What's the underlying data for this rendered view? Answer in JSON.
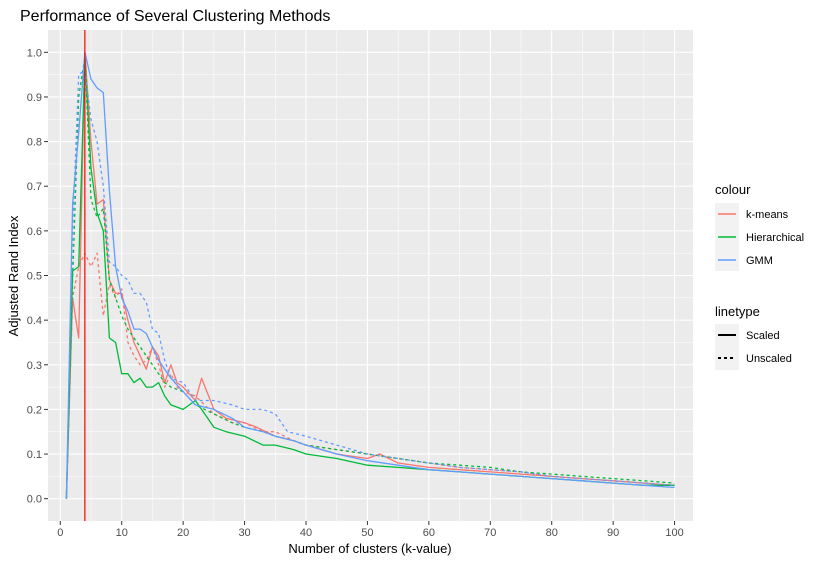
{
  "chart_data": {
    "type": "line",
    "title": "Performance of Several Clustering Methods",
    "xlabel": "Number of clusters (k-value)",
    "ylabel": "Adjusted Rand Index",
    "xlim": [
      -2,
      103
    ],
    "ylim": [
      -0.05,
      1.05
    ],
    "x_ticks": [
      0,
      10,
      20,
      30,
      40,
      50,
      60,
      70,
      80,
      90,
      100
    ],
    "y_ticks": [
      0.0,
      0.1,
      0.2,
      0.3,
      0.4,
      0.5,
      0.6,
      0.7,
      0.8,
      0.9,
      1.0
    ],
    "grid": true,
    "panel_color": "#EBEBEB",
    "vline": {
      "x": 4,
      "color": "#FF0000"
    },
    "legend": {
      "placement": "right",
      "colour_title": "colour",
      "linetype_title": "linetype",
      "colour_entries": [
        {
          "label": "k-means",
          "color": "#F8766D"
        },
        {
          "label": "Hierarchical",
          "color": "#00BA38"
        },
        {
          "label": "GMM",
          "color": "#619CFF"
        }
      ],
      "linetype_entries": [
        {
          "label": "Scaled",
          "dash": "solid"
        },
        {
          "label": "Unscaled",
          "dash": "dotted"
        }
      ]
    },
    "series": [
      {
        "method": "k-means",
        "linetype": "Scaled",
        "color": "#F8766D",
        "points": [
          [
            1,
            0.0
          ],
          [
            2,
            0.45
          ],
          [
            3,
            0.36
          ],
          [
            4,
            1.0
          ],
          [
            5,
            0.8
          ],
          [
            6,
            0.66
          ],
          [
            7,
            0.67
          ],
          [
            8,
            0.49
          ],
          [
            9,
            0.46
          ],
          [
            10,
            0.46
          ],
          [
            11,
            0.4
          ],
          [
            12,
            0.35
          ],
          [
            13,
            0.32
          ],
          [
            14,
            0.29
          ],
          [
            15,
            0.34
          ],
          [
            16,
            0.32
          ],
          [
            17,
            0.26
          ],
          [
            18,
            0.3
          ],
          [
            19,
            0.26
          ],
          [
            20,
            0.25
          ],
          [
            22,
            0.22
          ],
          [
            23,
            0.27
          ],
          [
            25,
            0.2
          ],
          [
            27,
            0.18
          ],
          [
            30,
            0.17
          ],
          [
            32,
            0.16
          ],
          [
            35,
            0.14
          ],
          [
            38,
            0.13
          ],
          [
            40,
            0.12
          ],
          [
            45,
            0.1
          ],
          [
            50,
            0.09
          ],
          [
            52,
            0.1
          ],
          [
            55,
            0.08
          ],
          [
            60,
            0.07
          ],
          [
            65,
            0.065
          ],
          [
            70,
            0.06
          ],
          [
            75,
            0.055
          ],
          [
            80,
            0.05
          ],
          [
            85,
            0.045
          ],
          [
            90,
            0.04
          ],
          [
            95,
            0.035
          ],
          [
            100,
            0.03
          ]
        ]
      },
      {
        "method": "k-means",
        "linetype": "Unscaled",
        "color": "#F8766D",
        "points": [
          [
            1,
            0.0
          ],
          [
            2,
            0.45
          ],
          [
            3,
            0.52
          ],
          [
            4,
            0.55
          ],
          [
            5,
            0.52
          ],
          [
            6,
            0.55
          ],
          [
            7,
            0.41
          ],
          [
            8,
            0.48
          ],
          [
            9,
            0.45
          ],
          [
            10,
            0.47
          ],
          [
            11,
            0.35
          ],
          [
            12,
            0.32
          ],
          [
            13,
            0.3
          ],
          [
            14,
            0.31
          ],
          [
            15,
            0.34
          ],
          [
            16,
            0.3
          ],
          [
            17,
            0.25
          ],
          [
            18,
            0.28
          ],
          [
            19,
            0.25
          ],
          [
            20,
            0.24
          ],
          [
            22,
            0.23
          ],
          [
            25,
            0.19
          ],
          [
            28,
            0.17
          ],
          [
            30,
            0.17
          ],
          [
            33,
            0.15
          ],
          [
            35,
            0.15
          ],
          [
            38,
            0.13
          ],
          [
            40,
            0.12
          ],
          [
            45,
            0.11
          ],
          [
            50,
            0.1
          ],
          [
            55,
            0.09
          ],
          [
            60,
            0.08
          ],
          [
            65,
            0.07
          ],
          [
            70,
            0.065
          ],
          [
            75,
            0.06
          ],
          [
            80,
            0.05
          ],
          [
            85,
            0.045
          ],
          [
            90,
            0.04
          ],
          [
            95,
            0.035
          ],
          [
            100,
            0.03
          ]
        ]
      },
      {
        "method": "Hierarchical",
        "linetype": "Scaled",
        "color": "#00BA38",
        "points": [
          [
            1,
            0.0
          ],
          [
            2,
            0.51
          ],
          [
            3,
            0.52
          ],
          [
            4,
            0.99
          ],
          [
            5,
            0.74
          ],
          [
            6,
            0.64
          ],
          [
            7,
            0.6
          ],
          [
            8,
            0.36
          ],
          [
            9,
            0.35
          ],
          [
            10,
            0.28
          ],
          [
            11,
            0.28
          ],
          [
            12,
            0.26
          ],
          [
            13,
            0.27
          ],
          [
            14,
            0.25
          ],
          [
            15,
            0.25
          ],
          [
            16,
            0.26
          ],
          [
            17,
            0.23
          ],
          [
            18,
            0.21
          ],
          [
            20,
            0.2
          ],
          [
            22,
            0.22
          ],
          [
            23,
            0.2
          ],
          [
            25,
            0.16
          ],
          [
            27,
            0.15
          ],
          [
            30,
            0.14
          ],
          [
            33,
            0.12
          ],
          [
            35,
            0.12
          ],
          [
            38,
            0.11
          ],
          [
            40,
            0.1
          ],
          [
            45,
            0.09
          ],
          [
            50,
            0.075
          ],
          [
            55,
            0.07
          ],
          [
            60,
            0.065
          ],
          [
            65,
            0.06
          ],
          [
            70,
            0.055
          ],
          [
            75,
            0.05
          ],
          [
            80,
            0.045
          ],
          [
            85,
            0.04
          ],
          [
            90,
            0.035
          ],
          [
            95,
            0.03
          ],
          [
            100,
            0.03
          ]
        ]
      },
      {
        "method": "Hierarchical",
        "linetype": "Unscaled",
        "color": "#00BA38",
        "points": [
          [
            1,
            0.0
          ],
          [
            2,
            0.49
          ],
          [
            3,
            0.9
          ],
          [
            4,
            0.99
          ],
          [
            5,
            0.67
          ],
          [
            6,
            0.63
          ],
          [
            7,
            0.65
          ],
          [
            8,
            0.49
          ],
          [
            9,
            0.45
          ],
          [
            10,
            0.41
          ],
          [
            11,
            0.38
          ],
          [
            12,
            0.36
          ],
          [
            13,
            0.34
          ],
          [
            14,
            0.32
          ],
          [
            15,
            0.3
          ],
          [
            16,
            0.28
          ],
          [
            17,
            0.26
          ],
          [
            18,
            0.25
          ],
          [
            20,
            0.24
          ],
          [
            22,
            0.21
          ],
          [
            25,
            0.19
          ],
          [
            28,
            0.17
          ],
          [
            30,
            0.16
          ],
          [
            33,
            0.15
          ],
          [
            35,
            0.14
          ],
          [
            38,
            0.13
          ],
          [
            40,
            0.12
          ],
          [
            45,
            0.11
          ],
          [
            50,
            0.1
          ],
          [
            55,
            0.09
          ],
          [
            60,
            0.08
          ],
          [
            65,
            0.075
          ],
          [
            70,
            0.07
          ],
          [
            75,
            0.06
          ],
          [
            80,
            0.055
          ],
          [
            85,
            0.05
          ],
          [
            90,
            0.045
          ],
          [
            95,
            0.04
          ],
          [
            100,
            0.035
          ]
        ]
      },
      {
        "method": "GMM",
        "linetype": "Scaled",
        "color": "#619CFF",
        "points": [
          [
            1,
            0.0
          ],
          [
            2,
            0.66
          ],
          [
            3,
            0.82
          ],
          [
            4,
            1.0
          ],
          [
            5,
            0.94
          ],
          [
            6,
            0.92
          ],
          [
            7,
            0.91
          ],
          [
            8,
            0.69
          ],
          [
            9,
            0.52
          ],
          [
            10,
            0.45
          ],
          [
            11,
            0.42
          ],
          [
            12,
            0.38
          ],
          [
            13,
            0.38
          ],
          [
            14,
            0.37
          ],
          [
            15,
            0.34
          ],
          [
            16,
            0.31
          ],
          [
            17,
            0.29
          ],
          [
            18,
            0.27
          ],
          [
            20,
            0.24
          ],
          [
            22,
            0.21
          ],
          [
            25,
            0.2
          ],
          [
            28,
            0.18
          ],
          [
            30,
            0.16
          ],
          [
            33,
            0.15
          ],
          [
            35,
            0.14
          ],
          [
            38,
            0.13
          ],
          [
            40,
            0.12
          ],
          [
            45,
            0.1
          ],
          [
            50,
            0.085
          ],
          [
            55,
            0.075
          ],
          [
            60,
            0.065
          ],
          [
            65,
            0.06
          ],
          [
            70,
            0.055
          ],
          [
            75,
            0.05
          ],
          [
            80,
            0.045
          ],
          [
            85,
            0.04
          ],
          [
            90,
            0.035
          ],
          [
            95,
            0.03
          ],
          [
            100,
            0.025
          ]
        ]
      },
      {
        "method": "GMM",
        "linetype": "Unscaled",
        "color": "#619CFF",
        "points": [
          [
            1,
            0.0
          ],
          [
            2,
            0.6
          ],
          [
            3,
            0.95
          ],
          [
            4,
            0.96
          ],
          [
            5,
            0.85
          ],
          [
            6,
            0.8
          ],
          [
            7,
            0.7
          ],
          [
            8,
            0.53
          ],
          [
            9,
            0.52
          ],
          [
            10,
            0.5
          ],
          [
            11,
            0.49
          ],
          [
            12,
            0.46
          ],
          [
            13,
            0.46
          ],
          [
            14,
            0.44
          ],
          [
            15,
            0.38
          ],
          [
            16,
            0.37
          ],
          [
            17,
            0.31
          ],
          [
            18,
            0.27
          ],
          [
            20,
            0.26
          ],
          [
            22,
            0.22
          ],
          [
            25,
            0.22
          ],
          [
            28,
            0.21
          ],
          [
            30,
            0.2
          ],
          [
            33,
            0.2
          ],
          [
            35,
            0.19
          ],
          [
            37,
            0.15
          ],
          [
            40,
            0.14
          ],
          [
            45,
            0.12
          ],
          [
            50,
            0.1
          ],
          [
            55,
            0.09
          ],
          [
            60,
            0.08
          ],
          [
            65,
            0.07
          ],
          [
            70,
            0.065
          ],
          [
            75,
            0.06
          ],
          [
            80,
            0.05
          ],
          [
            85,
            0.045
          ],
          [
            90,
            0.04
          ],
          [
            95,
            0.035
          ],
          [
            100,
            0.03
          ]
        ]
      }
    ]
  }
}
